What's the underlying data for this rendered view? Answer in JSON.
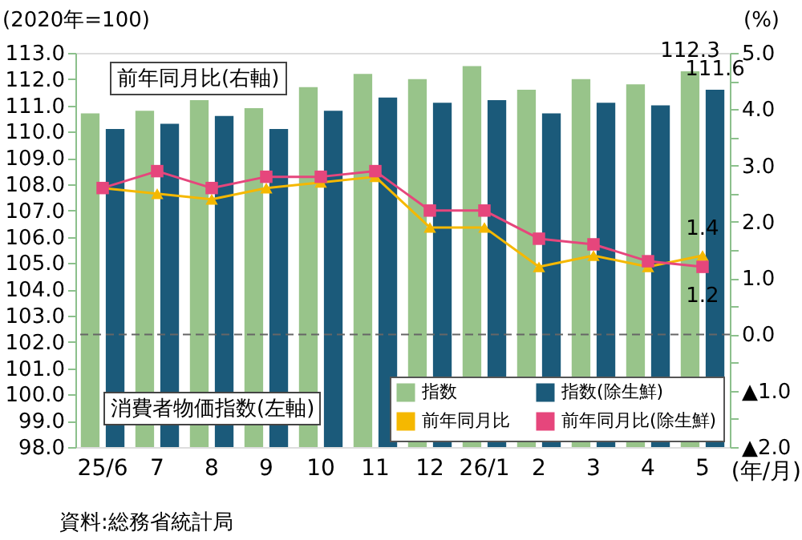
{
  "chart_data": {
    "type": "bar",
    "ylabel": "(2020年=100)",
    "y2label": "(%)",
    "xlabel": "(年/月)",
    "categories": [
      "25/6",
      "7",
      "8",
      "9",
      "10",
      "11",
      "12",
      "26/1",
      "2",
      "3",
      "4",
      "5"
    ],
    "series": [
      {
        "name": "指数",
        "color": "#98c48a",
        "values": [
          110.7,
          110.8,
          111.2,
          110.9,
          111.7,
          112.2,
          112.0,
          112.5,
          111.6,
          112.0,
          111.8,
          112.3
        ],
        "value_labels": [
          null,
          null,
          null,
          null,
          null,
          null,
          null,
          null,
          null,
          null,
          null,
          "112.3"
        ]
      },
      {
        "name": "指数(除生鮮)",
        "color": "#1b5a7a",
        "values": [
          110.1,
          110.3,
          110.6,
          110.1,
          110.8,
          111.3,
          111.1,
          111.2,
          110.7,
          111.1,
          111.0,
          111.6
        ],
        "value_labels": [
          null,
          null,
          null,
          null,
          null,
          null,
          null,
          null,
          null,
          null,
          null,
          "111.6"
        ]
      },
      {
        "name": "前年同月比",
        "type": "line",
        "axis": "y2",
        "marker": "triangle",
        "color": "#f5b800",
        "values": [
          2.6,
          2.5,
          2.4,
          2.6,
          2.7,
          2.8,
          1.9,
          1.9,
          1.2,
          1.4,
          1.2,
          1.4
        ],
        "value_labels": [
          null,
          null,
          null,
          null,
          null,
          null,
          null,
          null,
          null,
          null,
          null,
          "1.4"
        ]
      },
      {
        "name": "前年同月比(除生鮮)",
        "type": "line",
        "axis": "y2",
        "marker": "square",
        "color": "#e6467c",
        "values": [
          2.6,
          2.9,
          2.6,
          2.8,
          2.8,
          2.9,
          2.2,
          2.2,
          1.7,
          1.6,
          1.3,
          1.2
        ],
        "value_labels": [
          null,
          null,
          null,
          null,
          null,
          null,
          null,
          null,
          null,
          null,
          null,
          "1.2"
        ]
      }
    ],
    "ylim": [
      98,
      113
    ],
    "yticks": [
      {
        "value": 98,
        "label": "98.0"
      },
      {
        "value": 99,
        "label": "99.0"
      },
      {
        "value": 100,
        "label": "100.0"
      },
      {
        "value": 101,
        "label": "101.0"
      },
      {
        "value": 102,
        "label": "102.0"
      },
      {
        "value": 103,
        "label": "103.0"
      },
      {
        "value": 104,
        "label": "104.0"
      },
      {
        "value": 105,
        "label": "105.0"
      },
      {
        "value": 106,
        "label": "106.0"
      },
      {
        "value": 107,
        "label": "107.0"
      },
      {
        "value": 108,
        "label": "108.0"
      },
      {
        "value": 109,
        "label": "109.0"
      },
      {
        "value": 110,
        "label": "110.0"
      },
      {
        "value": 111,
        "label": "111.0"
      },
      {
        "value": 112,
        "label": "112.0"
      },
      {
        "value": 113,
        "label": "113.0"
      }
    ],
    "y2lim": [
      -2,
      5
    ],
    "y2ticks": [
      {
        "value": -2,
        "label": "▲2.0"
      },
      {
        "value": -1.5,
        "label": null
      },
      {
        "value": -1,
        "label": "▲1.0"
      },
      {
        "value": -0.5,
        "label": null
      },
      {
        "value": 0,
        "label": "0.0"
      },
      {
        "value": 0.5,
        "label": null
      },
      {
        "value": 1,
        "label": "1.0"
      },
      {
        "value": 1.5,
        "label": null
      },
      {
        "value": 2,
        "label": "2.0"
      },
      {
        "value": 2.5,
        "label": null
      },
      {
        "value": 3,
        "label": "3.0"
      },
      {
        "value": 3.5,
        "label": null
      },
      {
        "value": 4,
        "label": "4.0"
      },
      {
        "value": 4.5,
        "label": null
      },
      {
        "value": 5,
        "label": "5.0"
      }
    ],
    "ref_lines": [
      {
        "axis": "y2",
        "value": 0,
        "color": "#666666",
        "line_style": "dashed"
      }
    ],
    "annotations": [
      "前年同月比(右軸)",
      "消費者物価指数(左軸)",
      "資料:総務省統計局"
    ],
    "legend": "bottom right",
    "grid": false
  }
}
